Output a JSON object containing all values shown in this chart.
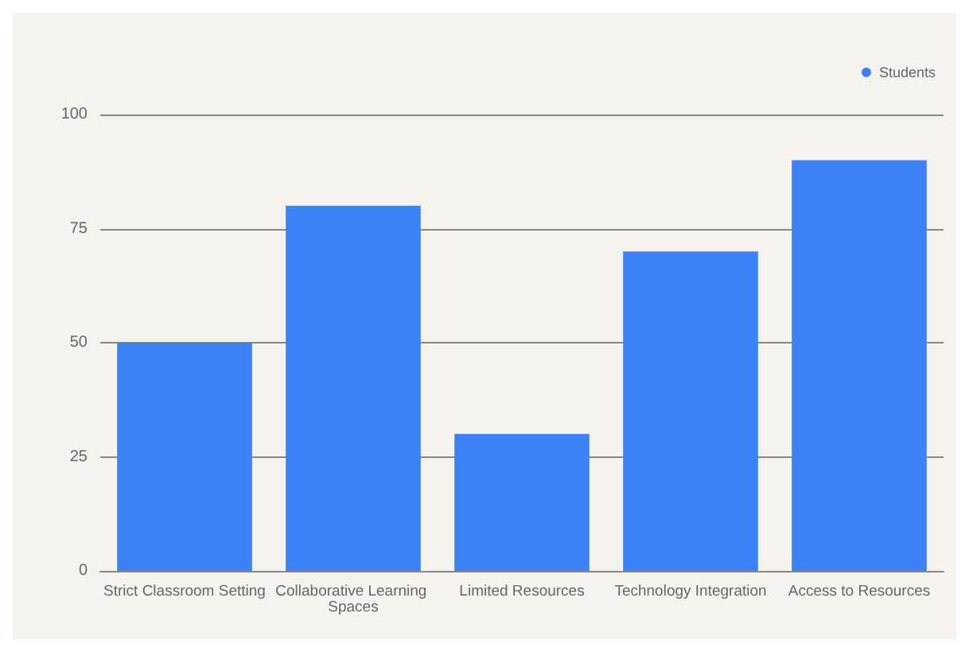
{
  "chart_data": {
    "type": "bar",
    "categories": [
      "Strict Classroom Setting",
      "Collaborative Learning Spaces",
      "Limited Resources",
      "Technology Integration",
      "Access to Resources"
    ],
    "series": [
      {
        "name": "Students",
        "color": "#3b82f6",
        "values": [
          50,
          80,
          30,
          70,
          90
        ]
      }
    ],
    "ylim": [
      0,
      100
    ],
    "yticks": [
      0,
      25,
      50,
      75,
      100
    ],
    "grid": "y",
    "legend": "top right"
  }
}
